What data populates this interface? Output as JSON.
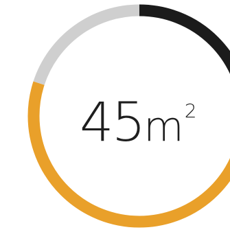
{
  "chart_data": {
    "type": "pie",
    "style": "donut",
    "segments": [
      {
        "value": 25,
        "color": "#1b1b1b"
      },
      {
        "value": 55,
        "color": "#e9a02a"
      },
      {
        "value": 20,
        "color": "#cfcfcf"
      }
    ],
    "center_value": "45",
    "center_unit": "m",
    "center_unit_sup": "2"
  }
}
